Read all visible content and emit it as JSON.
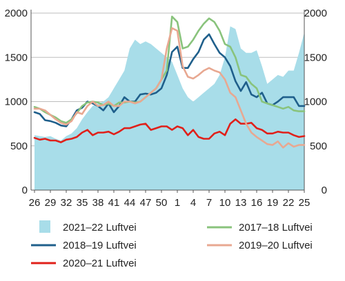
{
  "chart_data": {
    "type": "line",
    "x_labels": [
      "26",
      "27",
      "28",
      "29",
      "30",
      "31",
      "32",
      "33",
      "34",
      "35",
      "36",
      "37",
      "38",
      "39",
      "40",
      "41",
      "42",
      "43",
      "44",
      "45",
      "46",
      "47",
      "48",
      "49",
      "50",
      "51",
      "52",
      "1",
      "2",
      "3",
      "4",
      "5",
      "6",
      "7",
      "8",
      "9",
      "10",
      "11",
      "12",
      "13",
      "14",
      "15",
      "16",
      "17",
      "18",
      "19",
      "20",
      "21",
      "22",
      "23",
      "24",
      "25"
    ],
    "x_tick_labels": [
      "26",
      "29",
      "32",
      "35",
      "38",
      "41",
      "44",
      "47",
      "50",
      "1",
      "4",
      "7",
      "10",
      "13",
      "16",
      "19",
      "22",
      "25"
    ],
    "ylim": [
      0,
      2000
    ],
    "y_ticks": [
      "0",
      "500",
      "1000",
      "1500",
      "2000"
    ],
    "series": [
      {
        "name": "2021–22 Luftvei",
        "kind": "area",
        "color": "#a8dde9",
        "values": [
          620,
          610,
          600,
          610,
          580,
          560,
          610,
          640,
          700,
          800,
          880,
          950,
          980,
          1000,
          1050,
          1150,
          1250,
          1350,
          1600,
          1700,
          1650,
          1680,
          1650,
          1600,
          1550,
          1500,
          1450,
          1300,
          1150,
          1050,
          1000,
          1050,
          1100,
          1150,
          1200,
          1300,
          1500,
          1850,
          1820,
          1600,
          1550,
          1550,
          1580,
          1400,
          1200,
          1250,
          1300,
          1280,
          1350,
          1350,
          1550,
          1780
        ]
      },
      {
        "name": "2018–19 Luftvei",
        "kind": "line",
        "color": "#1f5f8b",
        "values": [
          880,
          860,
          790,
          780,
          760,
          730,
          720,
          800,
          900,
          930,
          1000,
          980,
          950,
          900,
          980,
          880,
          950,
          1050,
          1000,
          1000,
          1080,
          1090,
          1080,
          1100,
          1150,
          1300,
          1560,
          1620,
          1380,
          1380,
          1480,
          1560,
          1700,
          1760,
          1650,
          1550,
          1500,
          1400,
          1230,
          1120,
          1220,
          1080,
          1050,
          1100,
          980,
          960,
          1000,
          1050,
          1050,
          1050,
          950,
          950
        ]
      },
      {
        "name": "2020–21 Luftvei",
        "kind": "line",
        "color": "#e0201a",
        "values": [
          590,
          570,
          580,
          560,
          560,
          540,
          570,
          580,
          600,
          650,
          680,
          620,
          650,
          650,
          660,
          630,
          660,
          700,
          700,
          720,
          740,
          750,
          680,
          700,
          720,
          720,
          680,
          720,
          700,
          620,
          680,
          600,
          580,
          580,
          640,
          660,
          620,
          750,
          800,
          750,
          750,
          760,
          700,
          680,
          640,
          640,
          660,
          650,
          650,
          620,
          600,
          610
        ]
      },
      {
        "name": "2017–18 Luftvei",
        "kind": "line",
        "color": "#89c37c",
        "values": [
          940,
          920,
          880,
          850,
          820,
          780,
          760,
          800,
          870,
          950,
          990,
          1000,
          990,
          960,
          980,
          950,
          990,
          990,
          1000,
          990,
          1000,
          1050,
          1100,
          1150,
          1250,
          1350,
          1960,
          1900,
          1600,
          1620,
          1700,
          1800,
          1880,
          1940,
          1900,
          1800,
          1650,
          1620,
          1500,
          1300,
          1280,
          1200,
          1150,
          1000,
          980,
          960,
          940,
          920,
          940,
          900,
          890,
          890
        ]
      },
      {
        "name": "2019–20 Luftvei",
        "kind": "line",
        "color": "#e8a891",
        "values": [
          920,
          920,
          900,
          850,
          800,
          760,
          740,
          780,
          880,
          860,
          950,
          1000,
          950,
          960,
          1000,
          950,
          950,
          1000,
          1000,
          980,
          1000,
          1050,
          1100,
          1150,
          1250,
          1600,
          1830,
          1800,
          1400,
          1280,
          1260,
          1300,
          1350,
          1380,
          1350,
          1330,
          1250,
          1100,
          1050,
          900,
          750,
          650,
          600,
          560,
          520,
          510,
          550,
          480,
          530,
          490,
          510,
          510
        ]
      }
    ],
    "legend": [
      {
        "label": "2021–22 Luftvei",
        "kind": "area",
        "color": "#a8dde9"
      },
      {
        "label": "2017–18 Luftvei",
        "kind": "line",
        "color": "#89c37c"
      },
      {
        "label": "2018–19 Luftvei",
        "kind": "line",
        "color": "#1f5f8b"
      },
      {
        "label": "2019–20 Luftvei",
        "kind": "line",
        "color": "#e8a891"
      },
      {
        "label": "2020–21 Luftvei",
        "kind": "line",
        "color": "#e0201a"
      }
    ],
    "legend_position": "bottom",
    "grid": "horizontal"
  }
}
